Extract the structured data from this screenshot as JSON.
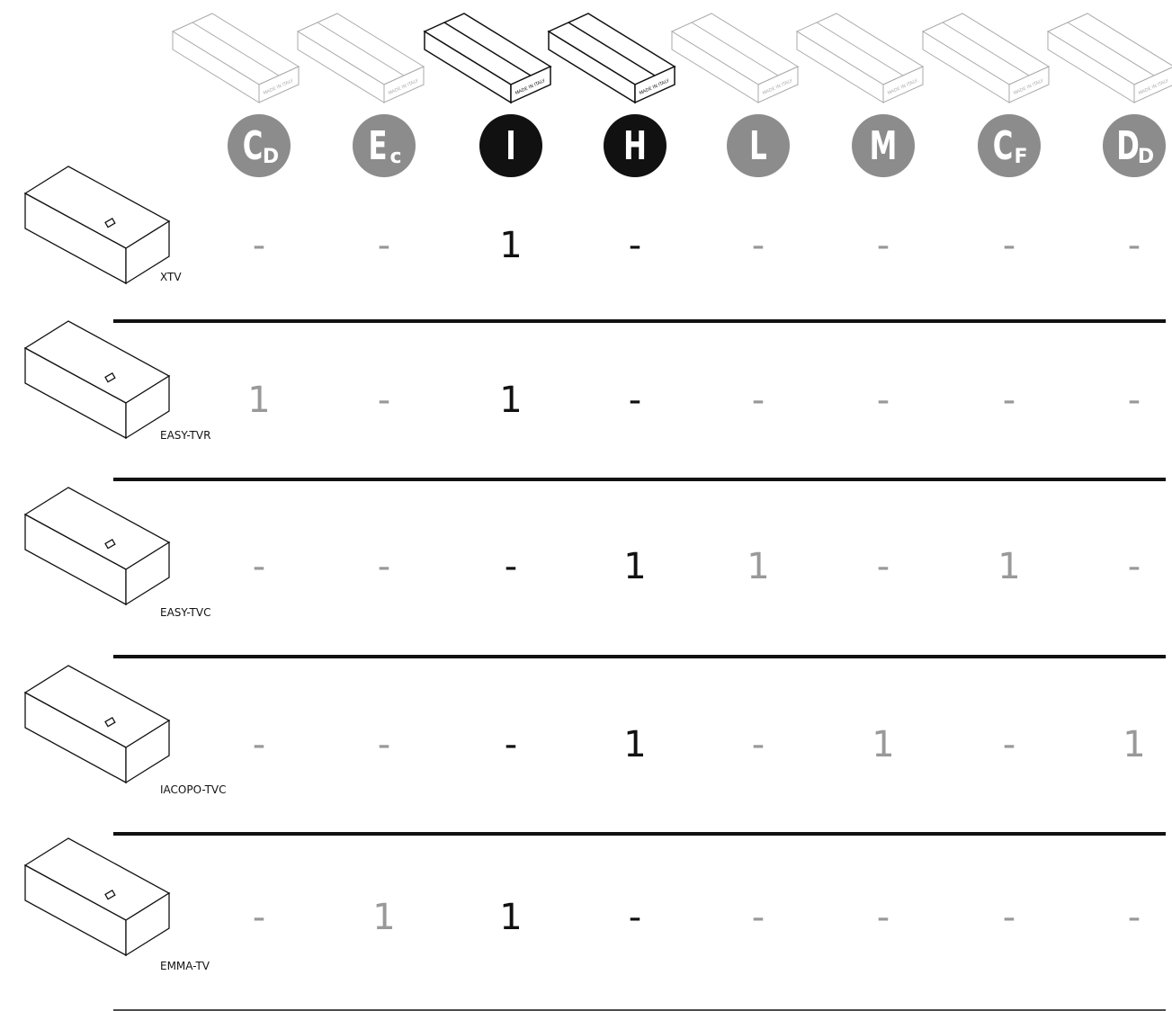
{
  "columns": [
    {
      "letter": "C",
      "sub": "D",
      "dark": false,
      "box_label": "MADE IN ITALY"
    },
    {
      "letter": "E",
      "sub": "c",
      "dark": false,
      "box_label": "MADE IN ITALY"
    },
    {
      "letter": "I",
      "sub": null,
      "dark": true,
      "box_label": "MADE IN ITALY"
    },
    {
      "letter": "H",
      "sub": null,
      "dark": true,
      "box_label": "MADE IN ITALY"
    },
    {
      "letter": "L",
      "sub": null,
      "dark": false,
      "box_label": "MADE IN ITALY"
    },
    {
      "letter": "M",
      "sub": null,
      "dark": false,
      "box_label": "MADE IN ITALY"
    },
    {
      "letter": "C",
      "sub": "F",
      "dark": false,
      "box_label": "MADE IN ITALY"
    },
    {
      "letter": "D",
      "sub": "D",
      "dark": false,
      "box_label": "MADE IN ITALY"
    }
  ],
  "rows": [
    {
      "name": "XTV",
      "cells": [
        "-",
        "-",
        1,
        "-",
        "-",
        "-",
        "-",
        "-"
      ]
    },
    {
      "name": "EASY-TVR",
      "cells": [
        1,
        "-",
        1,
        "-",
        "-",
        "-",
        "-",
        "-"
      ]
    },
    {
      "name": "EASY-TVC",
      "cells": [
        "-",
        "-",
        "-",
        1,
        1,
        "-",
        1,
        "-"
      ]
    },
    {
      "name": "IACOPO-TVC",
      "cells": [
        "-",
        "-",
        "-",
        1,
        "-",
        1,
        "-",
        1
      ]
    },
    {
      "name": "EMMA-TV",
      "cells": [
        "-",
        1,
        1,
        "-",
        "-",
        "-",
        "-",
        "-"
      ]
    }
  ]
}
